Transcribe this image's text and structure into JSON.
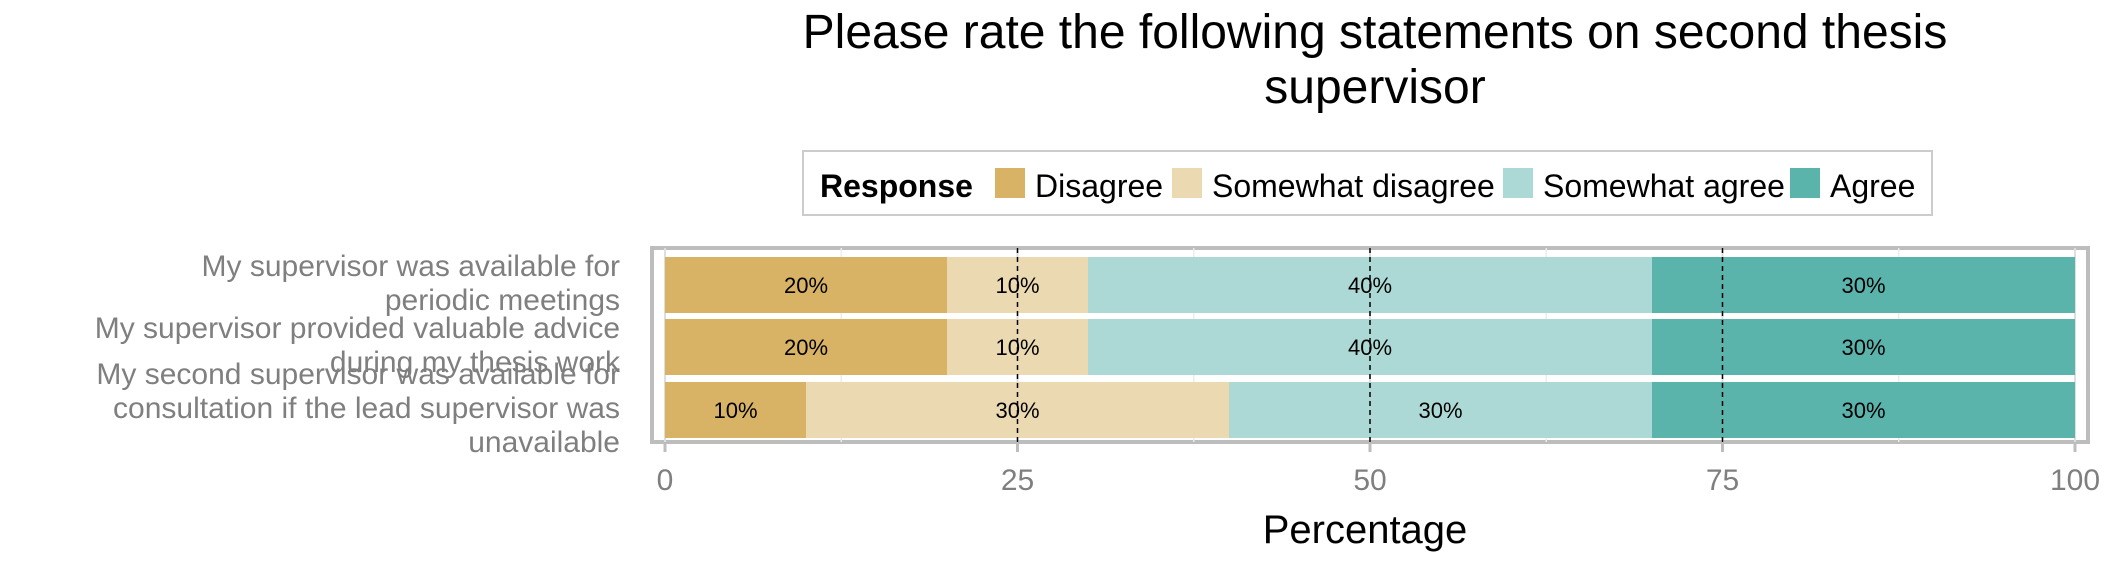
{
  "chart_data": {
    "type": "bar",
    "orientation": "horizontal",
    "stacked": true,
    "title": "Please rate the following statements on second thesis supervisor",
    "xlabel": "Percentage",
    "ylabel": "",
    "xlim": [
      0,
      100
    ],
    "xticks": [
      0,
      25,
      50,
      75,
      100
    ],
    "reference_lines": [
      25,
      50,
      75
    ],
    "legend": {
      "title": "Response",
      "position": "top"
    },
    "categories": [
      "My supervisor was available for periodic meetings",
      "My supervisor provided valuable advice during my thesis work",
      "My second supervisor was available for consultation if the lead supervisor was unavailable"
    ],
    "category_lines": [
      [
        "My supervisor was available for",
        "periodic meetings"
      ],
      [
        "My supervisor provided valuable advice",
        "during my thesis work"
      ],
      [
        "My second supervisor was available for",
        "consultation if the lead supervisor was",
        "unavailable"
      ]
    ],
    "series": [
      {
        "name": "Disagree",
        "color": "#D8B365",
        "values": [
          20,
          20,
          10
        ]
      },
      {
        "name": "Somewhat disagree",
        "color": "#EBD9B2",
        "values": [
          10,
          10,
          30
        ]
      },
      {
        "name": "Somewhat agree",
        "color": "#ACD9D5",
        "values": [
          40,
          40,
          30
        ]
      },
      {
        "name": "Agree",
        "color": "#5AB4AC",
        "values": [
          30,
          30,
          30
        ]
      }
    ]
  }
}
